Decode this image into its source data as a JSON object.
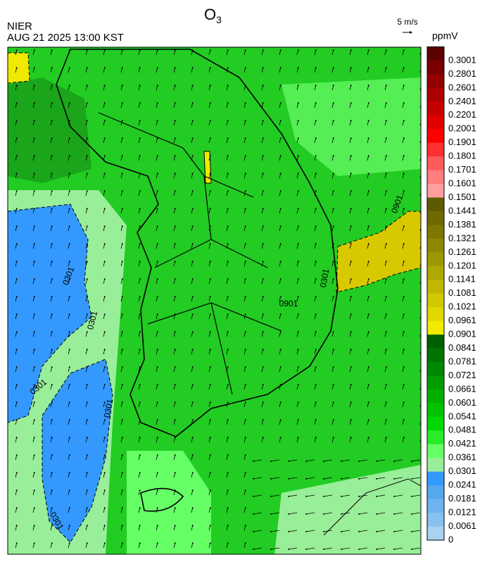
{
  "header": {
    "agency": "NIER",
    "datetime": "AUG 21 2025 13:00 KST",
    "title": "O",
    "title_sub": "3",
    "wind_scale": "5 m/s",
    "unit": "ppmV"
  },
  "colorbar": {
    "labels": [
      0.3001,
      0.2801,
      0.2601,
      0.2401,
      0.2201,
      0.2001,
      0.1901,
      0.1801,
      0.1701,
      0.1601,
      0.1501,
      0.1441,
      0.1381,
      0.1321,
      0.1261,
      0.1201,
      0.1141,
      0.1081,
      0.1021,
      0.0961,
      0.0901,
      0.0841,
      0.0781,
      0.0721,
      0.0661,
      0.0601,
      0.0541,
      0.0481,
      0.0421,
      0.0361,
      0.0301,
      0.0241,
      0.0181,
      0.0121,
      0.0061,
      0
    ],
    "colors": [
      "#5c0000",
      "#7a0000",
      "#940000",
      "#ad0000",
      "#c60000",
      "#e00000",
      "#ff0000",
      "#ff3030",
      "#ff5a5a",
      "#ff7d7d",
      "#ff9e9e",
      "#5e5a00",
      "#6e6a00",
      "#7e7800",
      "#8e8800",
      "#9e9800",
      "#aea800",
      "#c0b800",
      "#d0c800",
      "#e0d800",
      "#f0ea00",
      "#006000",
      "#007400",
      "#008800",
      "#009c00",
      "#00b000",
      "#00c400",
      "#00d800",
      "#28ec28",
      "#66ff66",
      "#99ee99",
      "#3399ff",
      "#55a8ee",
      "#6fb4ee",
      "#88c0ee",
      "#a8d2f0"
    ]
  },
  "map": {
    "contour_labels": [
      "0301",
      "0301",
      "0301",
      "0301",
      "0301",
      "0301",
      "0901",
      "0901"
    ]
  }
}
